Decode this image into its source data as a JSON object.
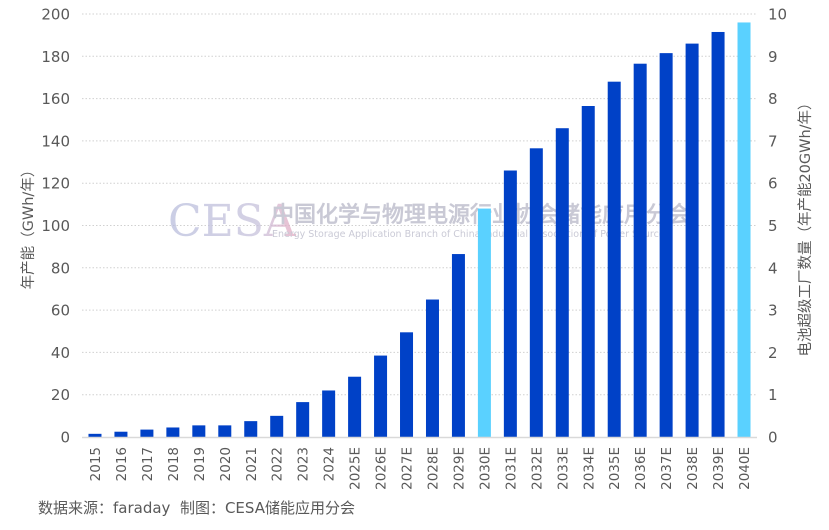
{
  "chart_data": {
    "type": "bar",
    "title": "",
    "categories": [
      "2015",
      "2016",
      "2017",
      "2018",
      "2019",
      "2020",
      "2021",
      "2022",
      "2023",
      "2024",
      "2025E",
      "2026E",
      "2027E",
      "2028E",
      "2029E",
      "2030E",
      "2031E",
      "2032E",
      "2033E",
      "2034E",
      "2035E",
      "2036E",
      "2037E",
      "2038E",
      "2039E",
      "2040E"
    ],
    "series": [
      {
        "name": "年产能",
        "values": [
          1.5,
          2.5,
          3.5,
          4.5,
          5.5,
          5.5,
          7.5,
          10,
          16.5,
          22,
          28.5,
          38.5,
          49.5,
          65,
          86.5,
          108,
          126,
          136.5,
          146,
          156.5,
          168,
          176.5,
          181.5,
          186,
          191.5,
          196
        ]
      }
    ],
    "highlight_categories": [
      "2030E",
      "2040E"
    ],
    "colors": {
      "bar": "#0041c7",
      "highlight": "#5ad1ff",
      "grid": "#d0d0d0",
      "axis": "#d9d9d9"
    },
    "xlabel": "",
    "ylabel": "年产能（GWh/年）",
    "ylabel_right": "电池超级工厂数量（年产能20GWh/年）",
    "ylim": [
      0,
      200
    ],
    "ylim_right": [
      0,
      10
    ],
    "yticks": [
      "0",
      "20",
      "40",
      "60",
      "80",
      "100",
      "120",
      "140",
      "160",
      "180",
      "200"
    ],
    "yticks_right": [
      "0",
      "1",
      "2",
      "3",
      "4",
      "5",
      "6",
      "7",
      "8",
      "9",
      "10"
    ],
    "grid": true,
    "legend": "none"
  },
  "watermark": {
    "logo": "CESA",
    "cn": "中国化学与物理电源行业协会储能应用分会",
    "en": "Energy Storage Application Branch of China Industrial Association of Power Sources"
  },
  "source_note": "数据来源：faraday  制图：CESA储能应用分会"
}
